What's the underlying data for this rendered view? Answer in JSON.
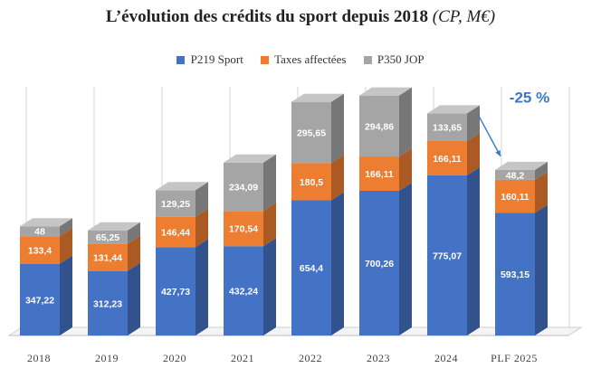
{
  "chart_data": {
    "type": "bar",
    "stacked": true,
    "three_d": true,
    "title": "L’évolution des crédits du sport depuis 2018",
    "subtitle": "(CP, M€)",
    "categories": [
      "2018",
      "2019",
      "2020",
      "2021",
      "2022",
      "2023",
      "2024",
      "PLF 2025"
    ],
    "series": [
      {
        "name": "P219 Sport",
        "values": [
          347.22,
          312.23,
          427.73,
          432.24,
          654.4,
          700.26,
          775.07,
          593.15
        ],
        "labels": [
          "347,22",
          "312,23",
          "427,73",
          "432,24",
          "654,4",
          "700,26",
          "775,07",
          "593,15"
        ],
        "color": "#4472c4"
      },
      {
        "name": "Taxes affectées",
        "values": [
          133.4,
          131.44,
          146.44,
          170.54,
          180.5,
          166.11,
          166.11,
          160.11
        ],
        "labels": [
          "133,4",
          "131,44",
          "146,44",
          "170,54",
          "180,5",
          "166,11",
          "166,11",
          "160,11"
        ],
        "color": "#ed7d31"
      },
      {
        "name": "P350 JOP",
        "values": [
          48,
          65.25,
          129.25,
          234.09,
          295.65,
          294.86,
          133.65,
          48.2
        ],
        "labels": [
          "48",
          "65,25",
          "129,25",
          "234,09",
          "295,65",
          "294,86",
          "133,65",
          "48,2"
        ],
        "color": "#a5a5a5"
      }
    ],
    "annotation": {
      "text": "-25 %",
      "from_category": "2024",
      "to_category": "PLF 2025",
      "color": "#3c78c8"
    },
    "legend_position": "top",
    "gridlines": true
  }
}
